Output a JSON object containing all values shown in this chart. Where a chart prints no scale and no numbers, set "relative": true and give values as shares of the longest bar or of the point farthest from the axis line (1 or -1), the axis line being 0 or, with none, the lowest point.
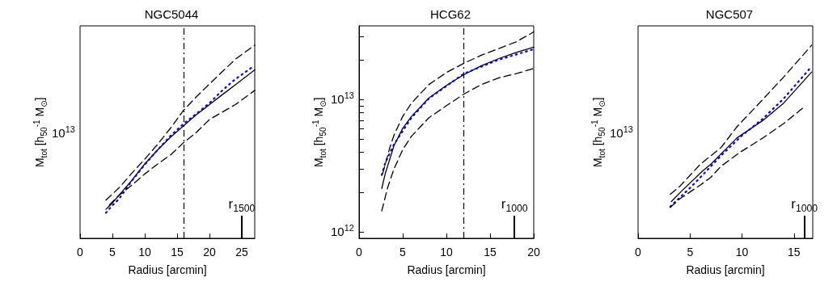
{
  "chart_data": [
    {
      "type": "line",
      "title": "NGC5044",
      "xlabel": "Radius [arcmin]",
      "ylabel": "M$_{tot}$ [h$_{50}$$^{-1}$ M$_{⊙}$]",
      "relative": true,
      "xlim": [
        0,
        27
      ],
      "xticks": [
        0,
        5,
        10,
        15,
        20,
        25
      ],
      "annotations": [
        "10$^{13}$"
      ],
      "series": [
        {
          "color": "#000000",
          "line_style": "solid",
          "x": [
            4,
            5,
            6,
            8,
            10,
            12,
            14,
            16,
            18,
            20,
            22,
            24,
            27
          ],
          "values": [
            0.15,
            0.183,
            0.222,
            0.3,
            0.385,
            0.458,
            0.524,
            0.582,
            0.641,
            0.692,
            0.744,
            0.795,
            0.872
          ]
        },
        {
          "color": "#0000ff",
          "line_style": "dotted",
          "x": [
            4,
            5,
            6,
            8,
            10,
            12,
            14,
            16,
            18,
            20,
            22,
            24,
            26.5
          ],
          "values": [
            0.132,
            0.171,
            0.203,
            0.297,
            0.381,
            0.458,
            0.531,
            0.593,
            0.645,
            0.7,
            0.766,
            0.824,
            0.883
          ]
        },
        {
          "color": "#000000",
          "line_style": "dashed",
          "x": [
            4,
            6,
            8,
            10,
            12,
            14,
            16,
            18,
            20,
            24,
            27
          ],
          "values": [
            0.198,
            0.26,
            0.337,
            0.41,
            0.487,
            0.571,
            0.663,
            0.733,
            0.799,
            0.927,
            1
          ]
        },
        {
          "color": "#000000",
          "line_style": "dashed",
          "x": [
            4.5,
            6,
            8,
            10,
            12,
            14,
            16,
            18,
            20,
            24,
            27
          ],
          "values": [
            0.172,
            0.222,
            0.275,
            0.333,
            0.385,
            0.432,
            0.495,
            0.549,
            0.615,
            0.692,
            0.766
          ]
        }
      ],
      "ref_lines": [
        {
          "axis": "x",
          "value": 16,
          "line_style": "dashed"
        },
        {
          "axis": "x",
          "value": 25,
          "label": "r$_{1500}$",
          "line_style": "solid"
        }
      ]
    },
    {
      "type": "line",
      "title": "HCG62",
      "xlabel": "Radius [arcmin]",
      "ylabel": "M$_{tot}$ [h$_{50}$$^{-1}$ M$_{⊙}$]",
      "log": "y",
      "xlim": [
        0,
        20
      ],
      "xticks": [
        0,
        5,
        10,
        15,
        20
      ],
      "ylim": [
        900000000000.0,
        36000000000000.0
      ],
      "yticks": [
        {
          "value": 1000000000000.0,
          "label": "10$^{12}$"
        },
        {
          "value": 2000000000000.0,
          "label": null
        },
        {
          "value": 3000000000000.0,
          "label": null
        },
        {
          "value": 4000000000000.0,
          "label": null
        },
        {
          "value": 5000000000000.0,
          "label": null
        },
        {
          "value": 6000000000000.0,
          "label": null
        },
        {
          "value": 7000000000000.0,
          "label": null
        },
        {
          "value": 8000000000000.0,
          "label": null
        },
        {
          "value": 9000000000000.0,
          "label": null
        },
        {
          "value": 10000000000000.0,
          "label": "10$^{13}$"
        },
        {
          "value": 20000000000000.0,
          "label": null
        },
        {
          "value": 30000000000000.0,
          "label": null
        }
      ],
      "series": [
        {
          "color": "#000000",
          "line_style": "solid",
          "x": [
            2.6,
            3,
            4,
            5,
            6,
            8,
            10,
            12,
            14,
            16,
            18,
            20
          ],
          "values": [
            2140000000000.0,
            2770000000000.0,
            4500000000000.0,
            6070000000000.0,
            7470000000000.0,
            10300000000000.0,
            12800000000000.0,
            15400000000000.0,
            18000000000000.0,
            20400000000000.0,
            22700000000000.0,
            24900000000000.0
          ]
        },
        {
          "color": "#0000ff",
          "line_style": "dotted",
          "x": [
            2.6,
            3,
            4,
            5,
            6,
            8,
            12,
            16,
            20
          ],
          "values": [
            2700000000000.0,
            3330000000000.0,
            4600000000000.0,
            5800000000000.0,
            7300000000000.0,
            10200000000000.0,
            15700000000000.0,
            20000000000000.0,
            24000000000000.0
          ]
        },
        {
          "color": "#000000",
          "line_style": "dashed",
          "x": [
            2.7,
            3.5,
            4,
            5,
            6,
            8,
            10,
            12,
            14,
            16,
            18,
            20
          ],
          "values": [
            2770000000000.0,
            4300000000000.0,
            5400000000000.0,
            7470000000000.0,
            9400000000000.0,
            13000000000000.0,
            16000000000000.0,
            18800000000000.0,
            21600000000000.0,
            24300000000000.0,
            27300000000000.0,
            32400000000000.0
          ]
        },
        {
          "color": "#000000",
          "line_style": "dashed",
          "x": [
            2.6,
            3.3,
            4,
            5,
            6,
            8,
            10,
            12,
            14,
            16,
            18,
            20
          ],
          "values": [
            1450000000000.0,
            2200000000000.0,
            3000000000000.0,
            4200000000000.0,
            5300000000000.0,
            7300000000000.0,
            9000000000000.0,
            11000000000000.0,
            13000000000000.0,
            14600000000000.0,
            15700000000000.0,
            17200000000000.0
          ]
        }
      ],
      "ref_lines": [
        {
          "axis": "x",
          "value": 12,
          "line_style": "dashed"
        },
        {
          "axis": "x",
          "value": 17.8,
          "label": "r$_{1000}$",
          "line_style": "solid"
        }
      ]
    },
    {
      "type": "line",
      "title": "NGC507",
      "xlabel": "Radius [arcmin]",
      "ylabel": "M$_{tot}$ [h$_{50}$$^{-1}$ M$_{⊙}$]",
      "relative": true,
      "xlim": [
        0,
        16.8
      ],
      "xticks": [
        0,
        5,
        10,
        15
      ],
      "annotations": [
        "10$^{13}$"
      ],
      "series": [
        {
          "color": "#000000",
          "line_style": "solid",
          "x": [
            3.2,
            4.1,
            6.2,
            7,
            9.5,
            12,
            14,
            16.7
          ],
          "values": [
            0.19,
            0.24,
            0.348,
            0.384,
            0.519,
            0.61,
            0.7,
            0.861
          ]
        },
        {
          "color": "#0000ff",
          "line_style": "dotted",
          "x": [
            3.1,
            4,
            5,
            6,
            8,
            10,
            12,
            14,
            16.7
          ],
          "values": [
            0.164,
            0.21,
            0.261,
            0.316,
            0.429,
            0.532,
            0.619,
            0.723,
            0.89
          ]
        },
        {
          "color": "#000000",
          "line_style": "dashed",
          "x": [
            3.1,
            4,
            6,
            8,
            9.5,
            12,
            14,
            16.7
          ],
          "values": [
            0.228,
            0.268,
            0.384,
            0.471,
            0.577,
            0.719,
            0.835,
            1
          ]
        },
        {
          "color": "#000000",
          "line_style": "dashed",
          "x": [
            3.1,
            4,
            5,
            6,
            7,
            8,
            9.8,
            12,
            14,
            16
          ],
          "values": [
            0.16,
            0.204,
            0.24,
            0.276,
            0.316,
            0.374,
            0.445,
            0.519,
            0.594,
            0.681
          ]
        }
      ],
      "ref_lines": [
        {
          "axis": "x",
          "value": 16,
          "label": "r$_{1000}$",
          "line_style": "solid"
        }
      ]
    }
  ]
}
